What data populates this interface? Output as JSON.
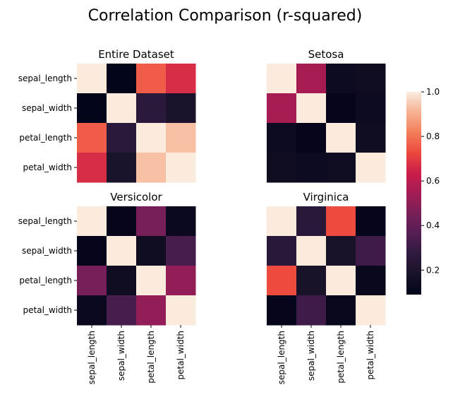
{
  "chart_data": {
    "type": "heatmap",
    "title": "Correlation Comparison (r-squared)",
    "labels": [
      "sepal_length",
      "sepal_width",
      "petal_length",
      "petal_width"
    ],
    "colorbar": {
      "min": 0.09,
      "max": 1.0,
      "ticks": [
        0.2,
        0.4,
        0.6,
        0.8,
        1.0
      ]
    },
    "panels": [
      {
        "title": "Entire Dataset",
        "matrix": [
          [
            1.0,
            0.09,
            0.76,
            0.67
          ],
          [
            0.09,
            1.0,
            0.26,
            0.19
          ],
          [
            0.76,
            0.26,
            1.0,
            0.93
          ],
          [
            0.67,
            0.19,
            0.93,
            1.0
          ]
        ]
      },
      {
        "title": "Setosa",
        "matrix": [
          [
            1.0,
            0.55,
            0.13,
            0.14
          ],
          [
            0.55,
            1.0,
            0.1,
            0.13
          ],
          [
            0.13,
            0.1,
            1.0,
            0.14
          ],
          [
            0.14,
            0.13,
            0.14,
            1.0
          ]
        ]
      },
      {
        "title": "Versicolor",
        "matrix": [
          [
            1.0,
            0.1,
            0.45,
            0.12
          ],
          [
            0.1,
            1.0,
            0.14,
            0.33
          ],
          [
            0.45,
            0.14,
            1.0,
            0.51
          ],
          [
            0.12,
            0.33,
            0.51,
            1.0
          ]
        ]
      },
      {
        "title": "Virginica",
        "matrix": [
          [
            1.0,
            0.25,
            0.73,
            0.1
          ],
          [
            0.25,
            1.0,
            0.18,
            0.31
          ],
          [
            0.73,
            0.18,
            1.0,
            0.11
          ],
          [
            0.1,
            0.31,
            0.11,
            1.0
          ]
        ]
      }
    ]
  }
}
